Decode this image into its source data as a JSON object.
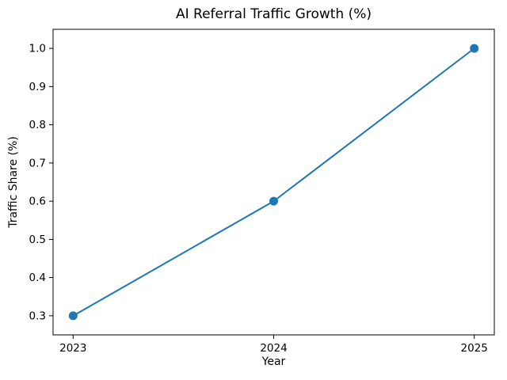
{
  "chart_data": {
    "type": "line",
    "title": "AI Referral Traffic Growth (%)",
    "xlabel": "Year",
    "ylabel": "Traffic Share (%)",
    "x": [
      2023,
      2024,
      2025
    ],
    "values": [
      0.3,
      0.6,
      1.0
    ],
    "xticks": {
      "values": [
        2023,
        2024,
        2025
      ],
      "labels": [
        "2023",
        "2024",
        "2025"
      ]
    },
    "yticks": {
      "values": [
        0.3,
        0.4,
        0.5,
        0.6,
        0.7,
        0.8,
        0.9,
        1.0
      ],
      "labels": [
        "0.3",
        "0.4",
        "0.5",
        "0.6",
        "0.7",
        "0.8",
        "0.9",
        "1.0"
      ]
    },
    "xlim": [
      2022.9,
      2025.1
    ],
    "ylim": [
      0.25,
      1.05
    ],
    "line_color": "#1f77b4",
    "marker": "circle",
    "marker_size": 5.5,
    "line_width": 2,
    "spine_color": "#000000",
    "background": "#ffffff",
    "grid": false,
    "legend": "none"
  }
}
